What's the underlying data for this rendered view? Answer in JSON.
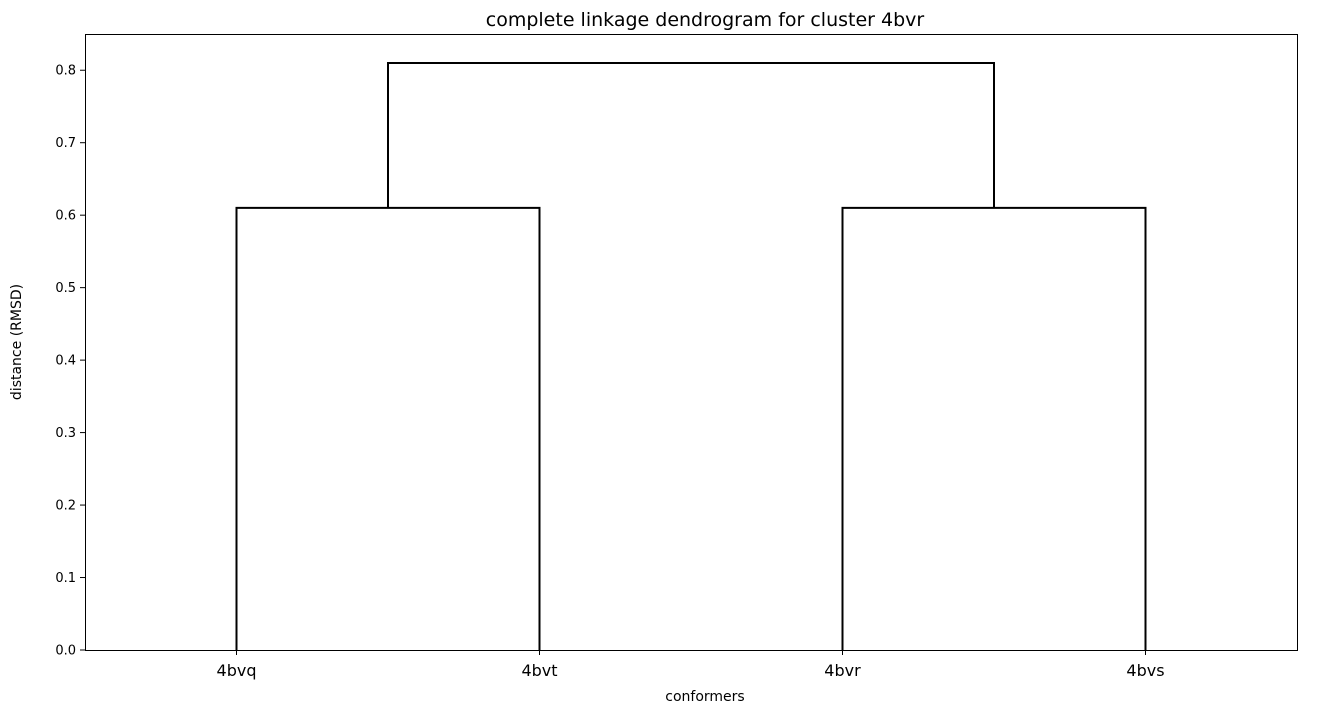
{
  "chart_data": {
    "type": "dendrogram",
    "title": "complete linkage dendrogram for cluster 4bvr",
    "xlabel": "conformers",
    "ylabel": "distance (RMSD)",
    "ylim": [
      0,
      0.85
    ],
    "yticks": [
      "0.0",
      "0.1",
      "0.2",
      "0.3",
      "0.4",
      "0.5",
      "0.6",
      "0.7",
      "0.8"
    ],
    "leaves": [
      "4bvq",
      "4bvt",
      "4bvr",
      "4bvs"
    ],
    "merges": [
      {
        "left": "4bvq",
        "right": "4bvt",
        "height": 0.61
      },
      {
        "left": "4bvr",
        "right": "4bvs",
        "height": 0.61
      },
      {
        "left": "4bvq+4bvt",
        "right": "4bvr+4bvs",
        "height": 0.81
      }
    ],
    "color": "#000000"
  }
}
